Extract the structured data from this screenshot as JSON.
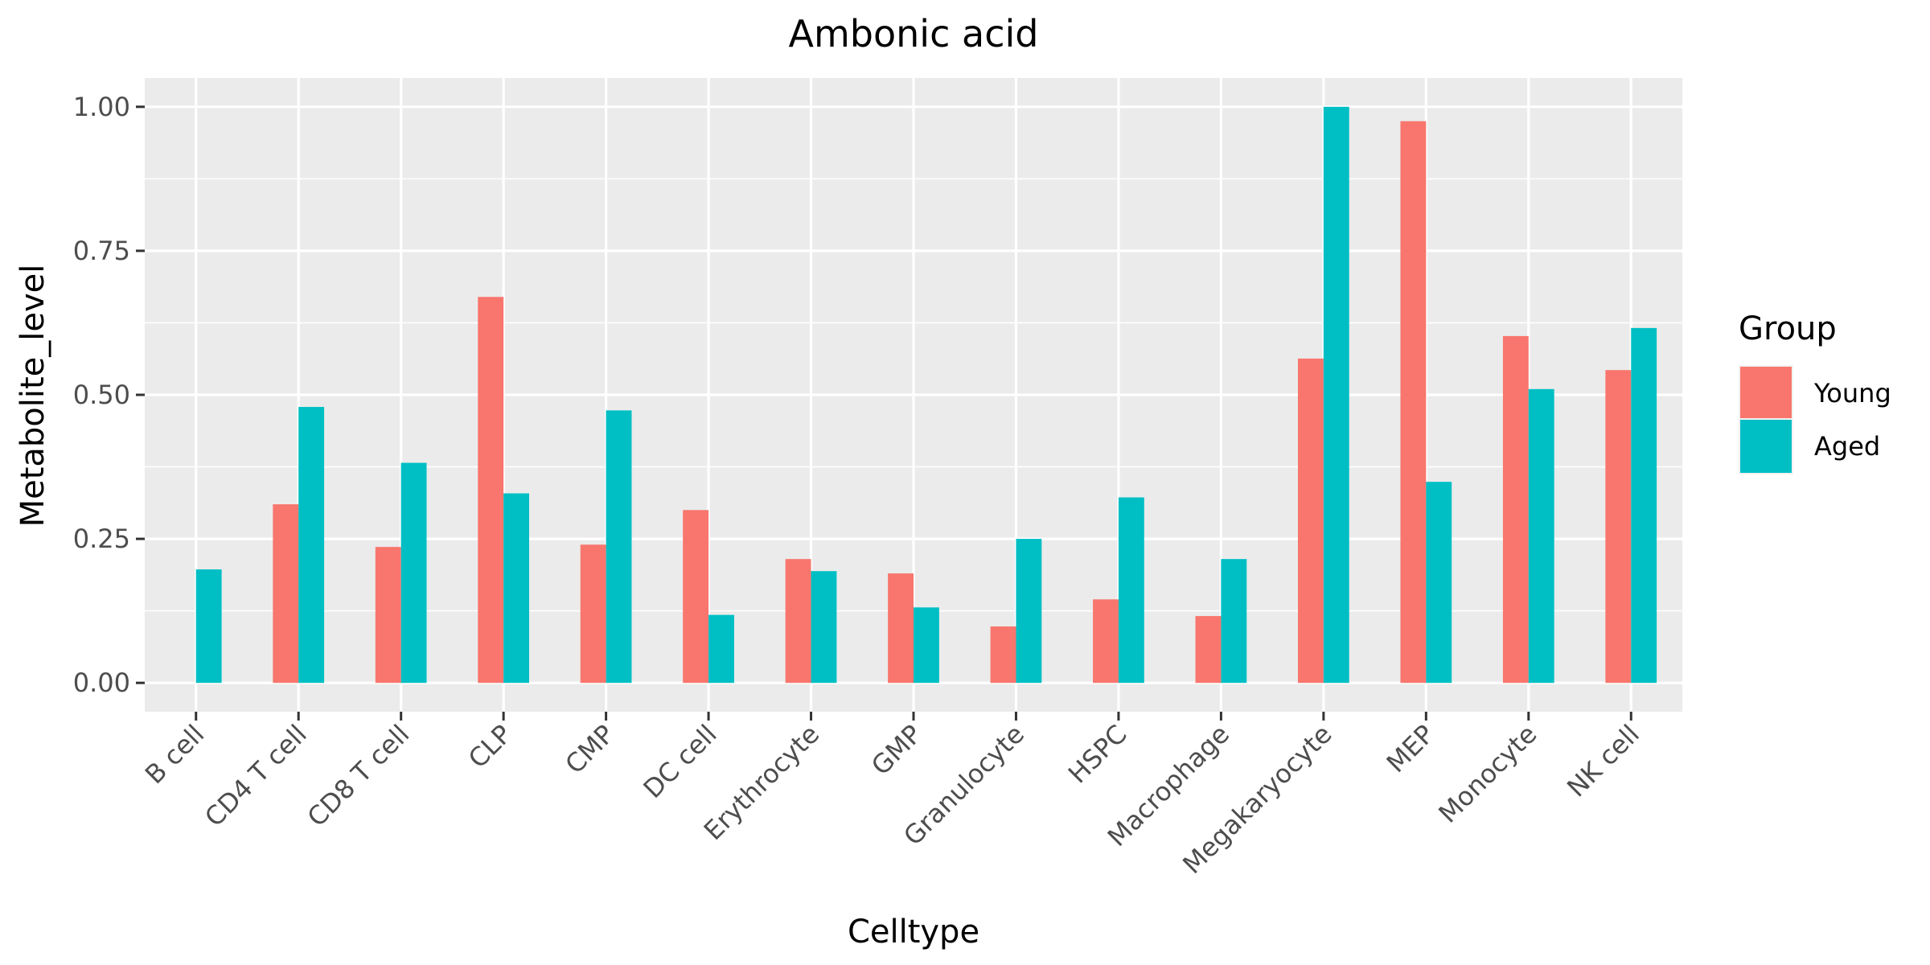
{
  "chart_data": {
    "type": "bar",
    "title": "Ambonic acid",
    "xlabel": "Celltype",
    "ylabel": "Metabolite_level",
    "ylim": [
      -0.05,
      1.05
    ],
    "yticks": [
      0,
      0.25,
      0.5,
      0.75,
      1
    ],
    "ytick_labels": [
      "0.00",
      "0.25",
      "0.50",
      "0.75",
      "1.00"
    ],
    "grid": true,
    "legend": {
      "title": "Group",
      "position": "right"
    },
    "categories": [
      "B cell",
      "CD4 T cell",
      "CD8 T cell",
      "CLP",
      "CMP",
      "DC cell",
      "Erythrocyte",
      "GMP",
      "Granulocyte",
      "HSPC",
      "Macrophage",
      "Megakaryocyte",
      "MEP",
      "Monocyte",
      "NK cell"
    ],
    "series": [
      {
        "name": "Young",
        "color": "#F8766D",
        "values": [
          0,
          0.31,
          0.236,
          0.67,
          0.24,
          0.3,
          0.215,
          0.19,
          0.098,
          0.145,
          0.116,
          0.563,
          0.975,
          0.602,
          0.543
        ]
      },
      {
        "name": "Aged",
        "color": "#00BFC4",
        "values": [
          0.197,
          0.479,
          0.382,
          0.329,
          0.473,
          0.118,
          0.194,
          0.131,
          0.25,
          0.322,
          0.215,
          1.0,
          0.349,
          0.51,
          0.616
        ]
      }
    ],
    "panel_background": "#EBEBEB",
    "grid_color": "#FFFFFF"
  }
}
